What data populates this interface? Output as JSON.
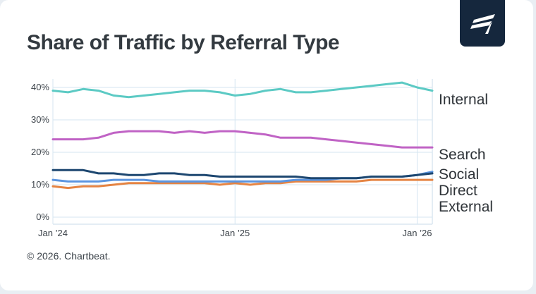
{
  "title": "Share of Traffic by Referral Type",
  "credit": "© 2026. Chartbeat.",
  "logo": {
    "icon": "chartbeat-flag-icon",
    "color": "#15273d"
  },
  "chart_data": {
    "type": "line",
    "title": "Share of Traffic by Referral Type",
    "xlabel": "",
    "ylabel": "",
    "x_start": "2024-01",
    "x_end": "2026-02",
    "xticks": [
      {
        "date": "2024-01",
        "label": "Jan ’24"
      },
      {
        "date": "2025-01",
        "label": "Jan ’25"
      },
      {
        "date": "2026-01",
        "label": "Jan ’26"
      }
    ],
    "yticks": [
      {
        "value": 0,
        "label": "0%"
      },
      {
        "value": 10,
        "label": "10%"
      },
      {
        "value": 20,
        "label": "20%"
      },
      {
        "value": 30,
        "label": "30%"
      },
      {
        "value": 40,
        "label": "40%"
      }
    ],
    "ylim": [
      0,
      42
    ],
    "grid": "horizontal and yearly vertical lines",
    "legend": "direct labels at right end of lines",
    "series": [
      {
        "name": "Internal",
        "color": "#5ccac4",
        "x": [
          "2024-01",
          "2024-02",
          "2024-03",
          "2024-04",
          "2024-05",
          "2024-06",
          "2024-07",
          "2024-08",
          "2024-09",
          "2024-10",
          "2024-11",
          "2024-12",
          "2025-01",
          "2025-02",
          "2025-03",
          "2025-04",
          "2025-05",
          "2025-06",
          "2025-07",
          "2025-08",
          "2025-09",
          "2025-10",
          "2025-11",
          "2025-12",
          "2026-01",
          "2026-02"
        ],
        "values": [
          39,
          38.5,
          39.5,
          39,
          37.5,
          37,
          37.5,
          38,
          38.5,
          39,
          39,
          38.5,
          37.5,
          38,
          39,
          39.5,
          38.5,
          38.5,
          39,
          39.5,
          40,
          40.5,
          41,
          41.5,
          40,
          39
        ]
      },
      {
        "name": "Search",
        "color": "#c063c5",
        "x": [
          "2024-01",
          "2024-02",
          "2024-03",
          "2024-04",
          "2024-05",
          "2024-06",
          "2024-07",
          "2024-08",
          "2024-09",
          "2024-10",
          "2024-11",
          "2024-12",
          "2025-01",
          "2025-02",
          "2025-03",
          "2025-04",
          "2025-05",
          "2025-06",
          "2025-07",
          "2025-08",
          "2025-09",
          "2025-10",
          "2025-11",
          "2025-12",
          "2026-01",
          "2026-02"
        ],
        "values": [
          24,
          24,
          24,
          24.5,
          26,
          26.5,
          26.5,
          26.5,
          26,
          26.5,
          26,
          26.5,
          26.5,
          26,
          25.5,
          24.5,
          24.5,
          24.5,
          24,
          23.5,
          23,
          22.5,
          22,
          21.5,
          21.5,
          21.5
        ]
      },
      {
        "name": "Social",
        "color": "#1d4770",
        "x": [
          "2024-01",
          "2024-02",
          "2024-03",
          "2024-04",
          "2024-05",
          "2024-06",
          "2024-07",
          "2024-08",
          "2024-09",
          "2024-10",
          "2024-11",
          "2024-12",
          "2025-01",
          "2025-02",
          "2025-03",
          "2025-04",
          "2025-05",
          "2025-06",
          "2025-07",
          "2025-08",
          "2025-09",
          "2025-10",
          "2025-11",
          "2025-12",
          "2026-01",
          "2026-02"
        ],
        "values": [
          14.5,
          14.5,
          14.5,
          13.5,
          13.5,
          13,
          13,
          13.5,
          13.5,
          13,
          13,
          12.5,
          12.5,
          12.5,
          12.5,
          12.5,
          12.5,
          12,
          12,
          12,
          12,
          12.5,
          12.5,
          12.5,
          13,
          13.5
        ]
      },
      {
        "name": "Direct",
        "color": "#5b95e0",
        "x": [
          "2024-01",
          "2024-02",
          "2024-03",
          "2024-04",
          "2024-05",
          "2024-06",
          "2024-07",
          "2024-08",
          "2024-09",
          "2024-10",
          "2024-11",
          "2024-12",
          "2025-01",
          "2025-02",
          "2025-03",
          "2025-04",
          "2025-05",
          "2025-06",
          "2025-07",
          "2025-08",
          "2025-09",
          "2025-10",
          "2025-11",
          "2025-12",
          "2026-01",
          "2026-02"
        ],
        "values": [
          11.5,
          11,
          11,
          11,
          11.5,
          11.5,
          11.5,
          11,
          11,
          11,
          11,
          11,
          11,
          11,
          11,
          11,
          11.5,
          11.5,
          11.5,
          12,
          12,
          12.5,
          12.5,
          12.5,
          13,
          14
        ]
      },
      {
        "name": "External",
        "color": "#e58443",
        "x": [
          "2024-01",
          "2024-02",
          "2024-03",
          "2024-04",
          "2024-05",
          "2024-06",
          "2024-07",
          "2024-08",
          "2024-09",
          "2024-10",
          "2024-11",
          "2024-12",
          "2025-01",
          "2025-02",
          "2025-03",
          "2025-04",
          "2025-05",
          "2025-06",
          "2025-07",
          "2025-08",
          "2025-09",
          "2025-10",
          "2025-11",
          "2025-12",
          "2026-01",
          "2026-02"
        ],
        "values": [
          9.5,
          9,
          9.5,
          9.5,
          10,
          10.5,
          10.5,
          10.5,
          10.5,
          10.5,
          10.5,
          10,
          10.5,
          10,
          10.5,
          10.5,
          11,
          11,
          11,
          11,
          11,
          11.5,
          11.5,
          11.5,
          11.5,
          11.5
        ]
      }
    ]
  }
}
